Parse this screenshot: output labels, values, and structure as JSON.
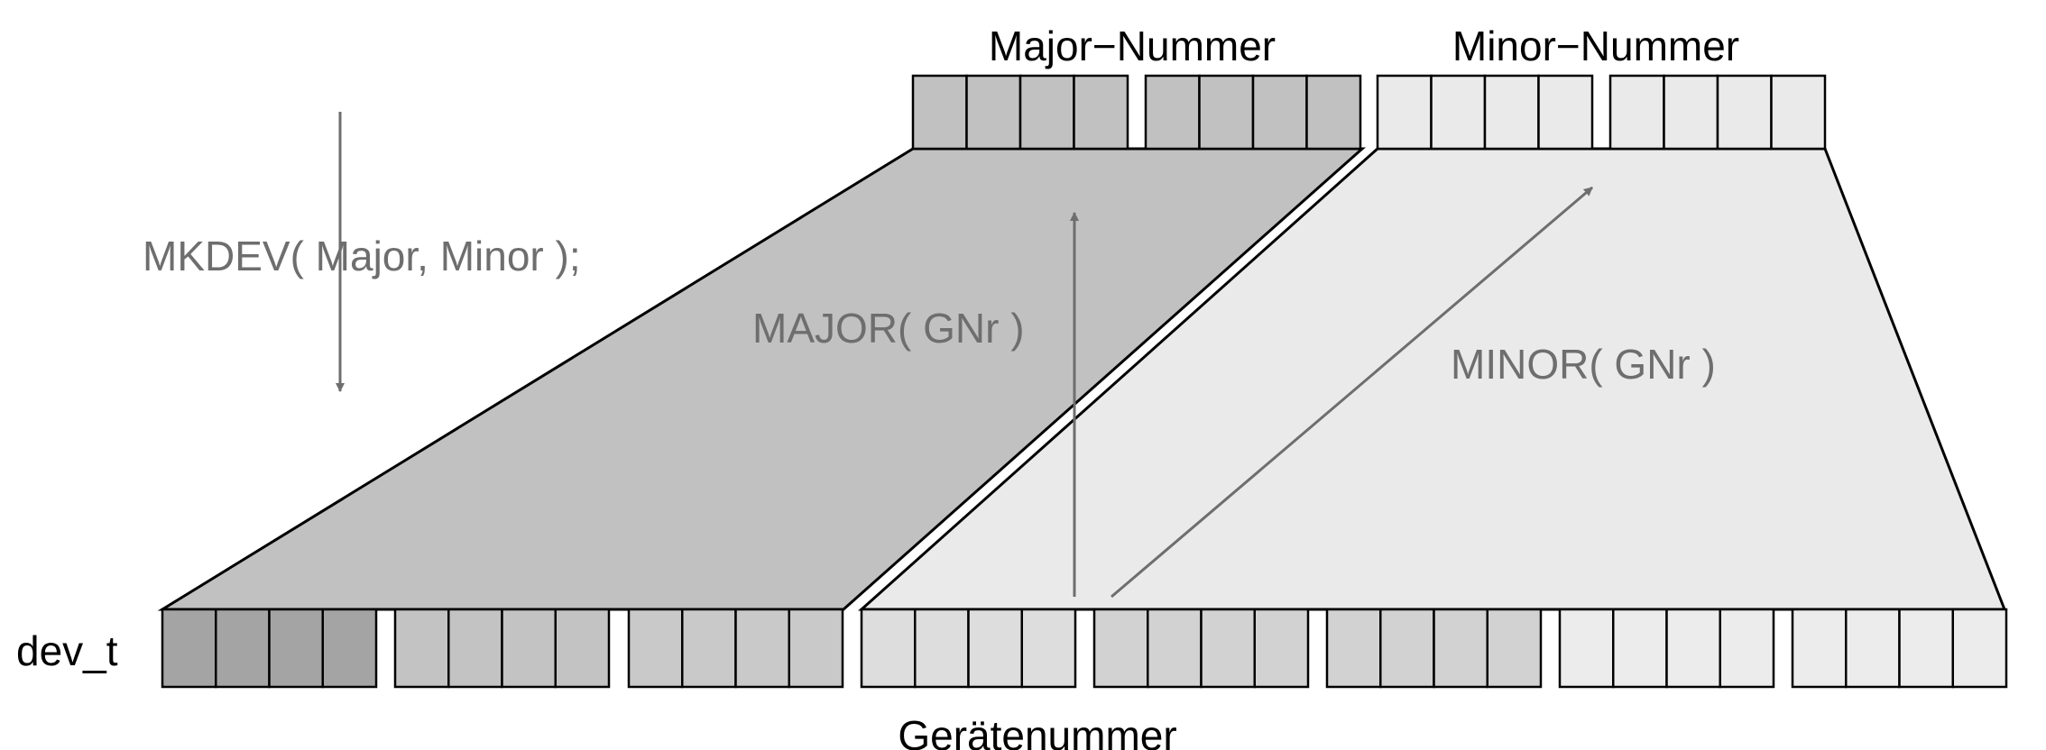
{
  "labels": {
    "major_number": "Major−Nummer",
    "minor_number": "Minor−Nummer",
    "mkdev_call": "MKDEV( Major, Minor );",
    "major_macro": "MAJOR( GNr )",
    "minor_macro": "MINOR( GNr )",
    "dev_t": "dev_t",
    "device_number": "Gerätenummer"
  },
  "colors": {
    "major_wedge": "#c1c1c1",
    "minor_wedge": "#eaeaea",
    "arrow": "#6e6e6e",
    "outline": "#000000",
    "bottom_nibbles": [
      "#a4a4a4",
      "#c3c3c3",
      "#c9c9c9",
      "#dddddd",
      "#d2d2d2",
      "#d2d2d2",
      "#ececec",
      "#ececec"
    ],
    "major_top_nibbles": [
      "#c1c1c1",
      "#c1c1c1"
    ],
    "minor_top_nibbles": [
      "#eaeaea",
      "#eaeaea"
    ]
  },
  "structure": {
    "bottom_nibble_count": 8,
    "top_nibble_count_per_part": 2,
    "bits_per_nibble": 4
  }
}
